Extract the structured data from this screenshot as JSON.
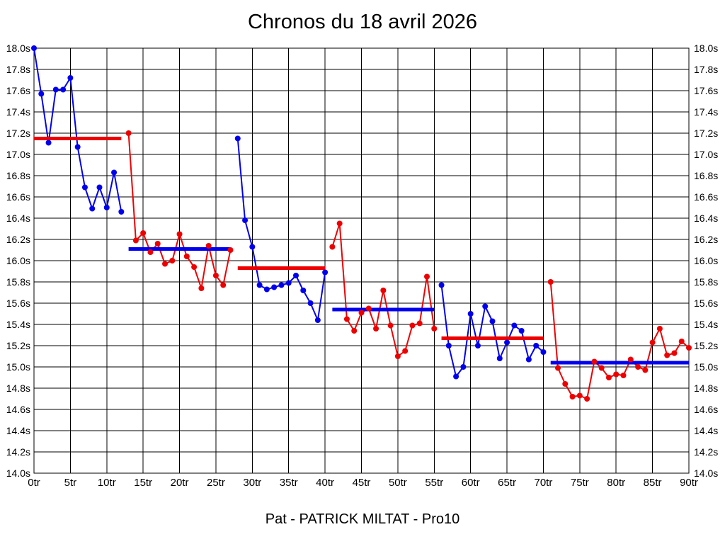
{
  "chart_data": {
    "type": "line",
    "title": "Chronos du 18 avril 2026",
    "caption": "Pat - PATRICK MILTAT - Pro10",
    "x_unit": "tr",
    "y_unit": "s",
    "xlim": [
      0,
      90
    ],
    "ylim": [
      14.0,
      18.0
    ],
    "x_tick_step": 5,
    "y_tick_step": 0.2,
    "grid": true,
    "legend": "none",
    "x_tick_labels": [
      "0tr",
      "5tr",
      "10tr",
      "15tr",
      "20tr",
      "25tr",
      "30tr",
      "35tr",
      "40tr",
      "45tr",
      "50tr",
      "55tr",
      "60tr",
      "65tr",
      "70tr",
      "75tr",
      "80tr",
      "85tr",
      "90tr"
    ],
    "y_tick_labels": [
      "18.0s",
      "17.8s",
      "17.6s",
      "17.4s",
      "17.2s",
      "17.0s",
      "16.8s",
      "16.6s",
      "16.4s",
      "16.2s",
      "16.0s",
      "15.8s",
      "15.6s",
      "15.4s",
      "15.2s",
      "15.0s",
      "14.8s",
      "14.6s",
      "14.4s",
      "14.2s",
      "14.0s"
    ],
    "colors": {
      "blue": "#0000ee",
      "red": "#ee0000"
    },
    "segments": [
      {
        "name": "segment-1",
        "color": "blue",
        "start_x": 0,
        "values": [
          18.0,
          17.57,
          17.11,
          17.61,
          17.61,
          17.72,
          17.07,
          16.69,
          16.49,
          16.69,
          16.5,
          16.83,
          16.46
        ]
      },
      {
        "name": "segment-2",
        "color": "red",
        "start_x": 13,
        "values": [
          17.2,
          16.19,
          16.26,
          16.08,
          16.16,
          15.97,
          16.0,
          16.25,
          16.04,
          15.94,
          15.74,
          16.14,
          15.86,
          15.77,
          16.1
        ]
      },
      {
        "name": "segment-3",
        "color": "blue",
        "start_x": 28,
        "values": [
          17.15,
          16.38,
          16.13,
          15.77,
          15.73,
          15.75,
          15.77,
          15.79,
          15.86,
          15.72,
          15.6,
          15.44,
          15.89
        ]
      },
      {
        "name": "segment-4",
        "color": "red",
        "start_x": 41,
        "values": [
          16.13,
          16.35,
          15.45,
          15.34,
          15.51,
          15.55,
          15.36,
          15.72,
          15.39,
          15.1,
          15.15,
          15.39,
          15.41,
          15.85,
          15.36
        ]
      },
      {
        "name": "segment-5",
        "color": "blue",
        "start_x": 56,
        "values": [
          15.77,
          15.2,
          14.91,
          15.0,
          15.5,
          15.2,
          15.57,
          15.43,
          15.08,
          15.23,
          15.39,
          15.34,
          15.07,
          15.2,
          15.14
        ]
      },
      {
        "name": "segment-6",
        "color": "red",
        "start_x": 71,
        "values": [
          15.8,
          14.99,
          14.84,
          14.72,
          14.73,
          14.7,
          15.05,
          14.99,
          14.9,
          14.93,
          14.92,
          15.07,
          15.0,
          14.97,
          15.23,
          15.36,
          15.11,
          15.13,
          15.24,
          15.18
        ]
      }
    ],
    "average_lines": [
      {
        "color": "red",
        "x_start": 0,
        "x_end": 12,
        "value": 17.15
      },
      {
        "color": "blue",
        "x_start": 13,
        "x_end": 27,
        "value": 16.11
      },
      {
        "color": "red",
        "x_start": 28,
        "x_end": 40,
        "value": 15.93
      },
      {
        "color": "blue",
        "x_start": 41,
        "x_end": 55,
        "value": 15.54
      },
      {
        "color": "red",
        "x_start": 56,
        "x_end": 70,
        "value": 15.27
      },
      {
        "color": "blue",
        "x_start": 71,
        "x_end": 90,
        "value": 15.04
      }
    ]
  }
}
